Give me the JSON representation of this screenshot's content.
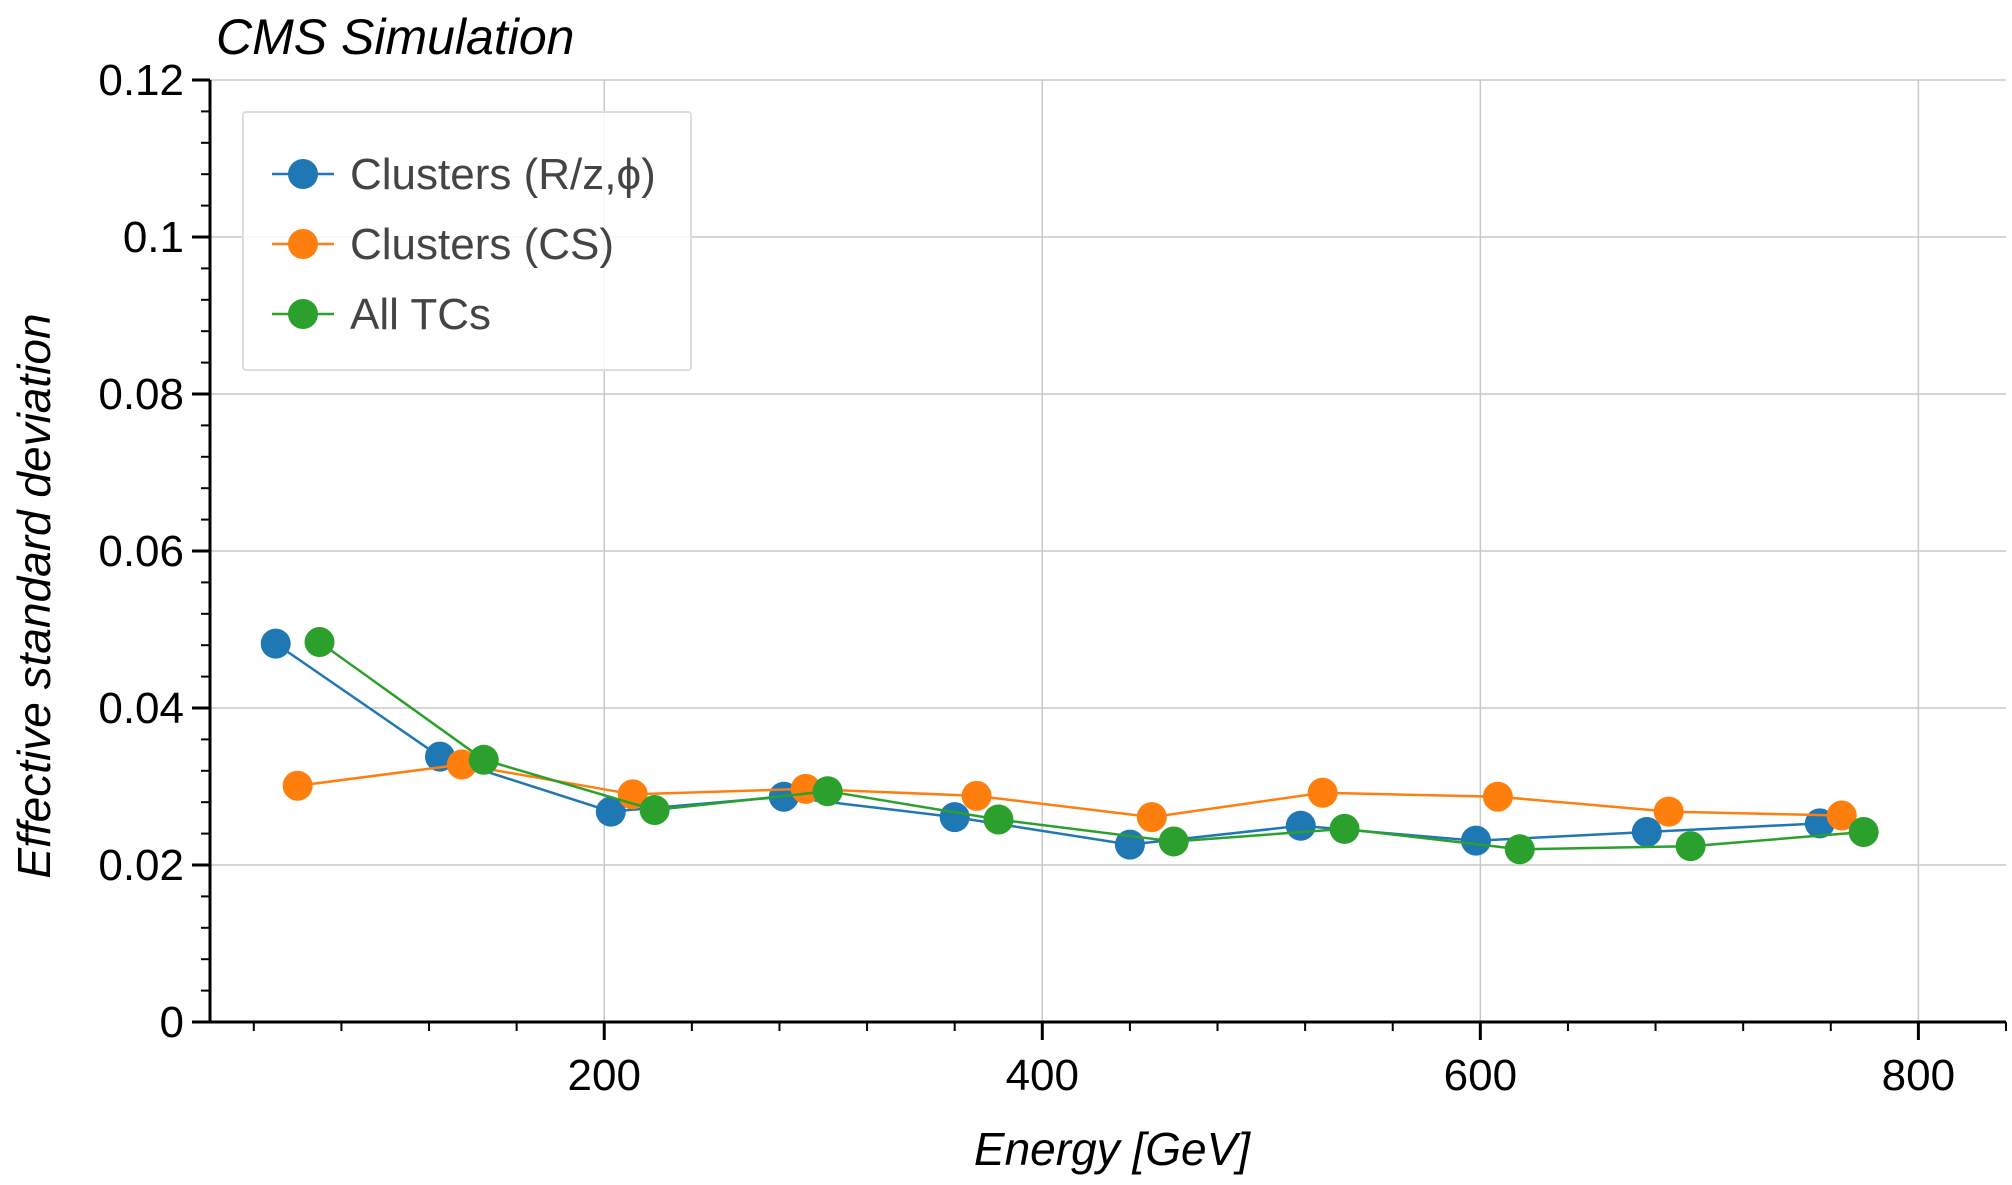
{
  "chart_data": {
    "type": "line",
    "title": "CMS Simulation",
    "xlabel": "Energy [GeV]",
    "ylabel": "Effective standard deviation",
    "xlim": [
      20,
      840
    ],
    "ylim": [
      0,
      0.12
    ],
    "x_major_ticks": [
      200,
      400,
      600,
      800
    ],
    "x_tick_labels": [
      "200",
      "400",
      "600",
      "800"
    ],
    "y_major_ticks": [
      0,
      0.02,
      0.04,
      0.06,
      0.08,
      0.1,
      0.12
    ],
    "y_tick_labels": [
      "0",
      "0.02",
      "0.04",
      "0.06",
      "0.08",
      "0.1",
      "0.12"
    ],
    "grid": true,
    "legend_position": "top-left",
    "series": [
      {
        "name": "Clusters (R/z,ϕ)",
        "color": "#1f77b4",
        "x": [
          50,
          125,
          203,
          282,
          360,
          440,
          518,
          598,
          676,
          755
        ],
        "y": [
          0.0482,
          0.0338,
          0.0268,
          0.0287,
          0.0261,
          0.0226,
          0.025,
          0.0231,
          0.0242,
          0.0253
        ]
      },
      {
        "name": "Clusters (CS)",
        "color": "#ff7f0e",
        "x": [
          60,
          135,
          213,
          292,
          370,
          450,
          528,
          608,
          686,
          765
        ],
        "y": [
          0.0301,
          0.0328,
          0.029,
          0.0297,
          0.0288,
          0.0261,
          0.0292,
          0.0287,
          0.0268,
          0.0263
        ]
      },
      {
        "name": "All TCs",
        "color": "#2ca02c",
        "x": [
          70,
          145,
          223,
          302,
          380,
          460,
          538,
          618,
          696,
          775
        ],
        "y": [
          0.0484,
          0.0334,
          0.027,
          0.0294,
          0.0258,
          0.023,
          0.0246,
          0.022,
          0.0224,
          0.0242
        ]
      }
    ]
  }
}
